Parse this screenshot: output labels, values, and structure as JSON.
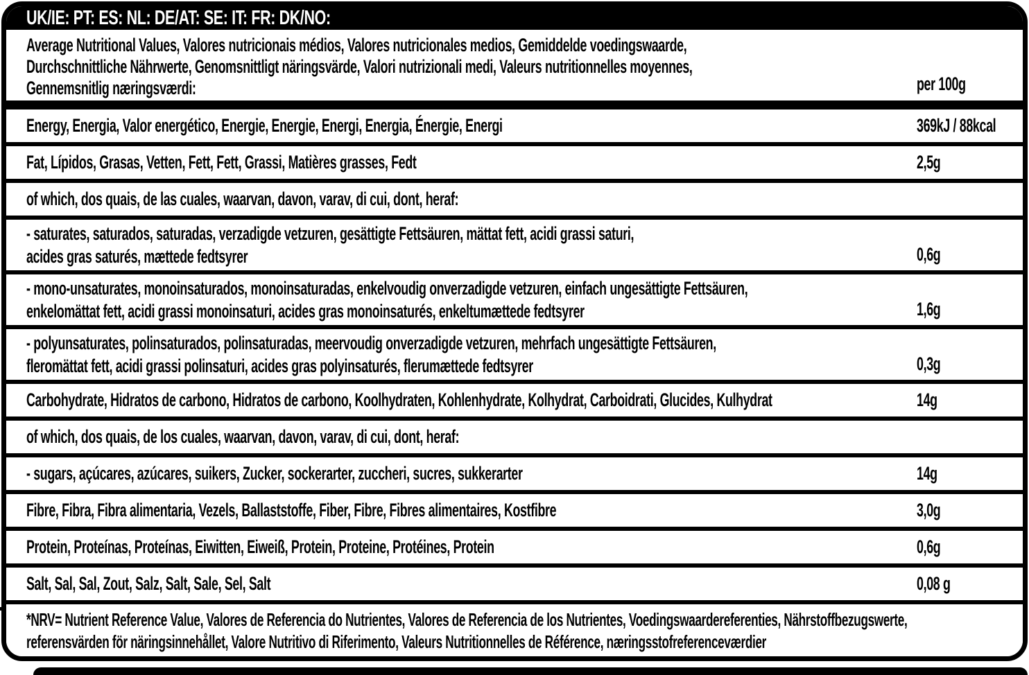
{
  "label": {
    "language_bar": "UK/IE: PT: ES: NL: DE/AT: SE: IT: FR: DK/NO:",
    "header": {
      "title_lines": [
        "Average Nutritional Values, Valores nutricionais médios, Valores nutricionales medios, Gemiddelde voedingswaarde,",
        "Durchschnittliche Nährwerte, Genomsnittligt näringsvärde, Valori nutrizionali medi, Valeurs nutritionnelles moyennes,",
        "Gennemsnitlig næringsværdi:"
      ],
      "per_column": "per 100g"
    },
    "rows": [
      {
        "lines": [
          "Energy, Energia, Valor energético, Energie, Energie, Energi, Energia, Énergie, Energi"
        ],
        "value": "369kJ / 88kcal"
      },
      {
        "lines": [
          "Fat, Lípidos, Grasas, Vetten, Fett, Fett, Grassi, Matières grasses, Fedt"
        ],
        "value": "2,5g"
      },
      {
        "lines": [
          "of which, dos quais, de las cuales, waarvan, davon, varav, di cui, dont, heraf:"
        ],
        "value": ""
      },
      {
        "lines": [
          "- saturates, saturados, saturadas, verzadigde vetzuren, gesättigte Fettsäuren, mättat fett, acidi grassi saturi,",
          "acides gras saturés, mættede fedtsyrer"
        ],
        "value": "0,6g"
      },
      {
        "lines": [
          "- mono-unsaturates, monoinsaturados, monoinsaturadas, enkelvoudig onverzadigde vetzuren, einfach ungesättigte Fettsäuren,",
          "enkelomättat fett, acidi grassi monoinsaturi, acides gras monoinsaturés, enkeltumættede fedtsyrer"
        ],
        "value": "1,6g"
      },
      {
        "lines": [
          "- polyunsaturates, polinsaturados, polinsaturadas, meervoudig onverzadigde vetzuren, mehrfach ungesättigte Fettsäuren,",
          "fleromättat fett, acidi grassi polinsaturi, acides gras polyinsaturés, flerumættede fedtsyrer"
        ],
        "value": "0,3g"
      },
      {
        "lines": [
          "Carbohydrate, Hidratos de carbono, Hidratos de carbono, Koolhydraten, Kohlenhydrate, Kolhydrat, Carboidrati, Glucides, Kulhydrat"
        ],
        "value": "14g"
      },
      {
        "lines": [
          "of which, dos quais, de los cuales, waarvan, davon, varav, di cui, dont, heraf:"
        ],
        "value": ""
      },
      {
        "lines": [
          "- sugars, açúcares, azúcares, suikers, Zucker, sockerarter, zuccheri, sucres, sukkerarter"
        ],
        "value": "14g"
      },
      {
        "lines": [
          "Fibre, Fibra, Fibra alimentaria, Vezels, Ballaststoffe, Fiber, Fibre, Fibres alimentaires, Kostfibre"
        ],
        "value": "3,0g"
      },
      {
        "lines": [
          "Protein, Proteínas, Proteínas, Eiwitten, Eiweiß, Protein, Proteine, Protéines, Protein"
        ],
        "value": "0,6g"
      },
      {
        "lines": [
          "Salt, Sal, Sal, Zout, Salz, Salt, Sale, Sel, Salt"
        ],
        "value": "0,08 g"
      }
    ],
    "footnote_lines": [
      "*NRV= Nutrient Reference Value, Valores de Referencia do Nutrientes, Valores de Referencia de los Nutrientes, Voedingswaardereferenties, Nährstoffbezugswerte,",
      "referensvärden för näringsinnehållet, Valore Nutritivo di Riferimento, Valeurs Nutritionnelles de Référence, næringsstofreferenceværdier"
    ],
    "colors": {
      "ink": "#000000",
      "paper": "#ffffff"
    }
  }
}
